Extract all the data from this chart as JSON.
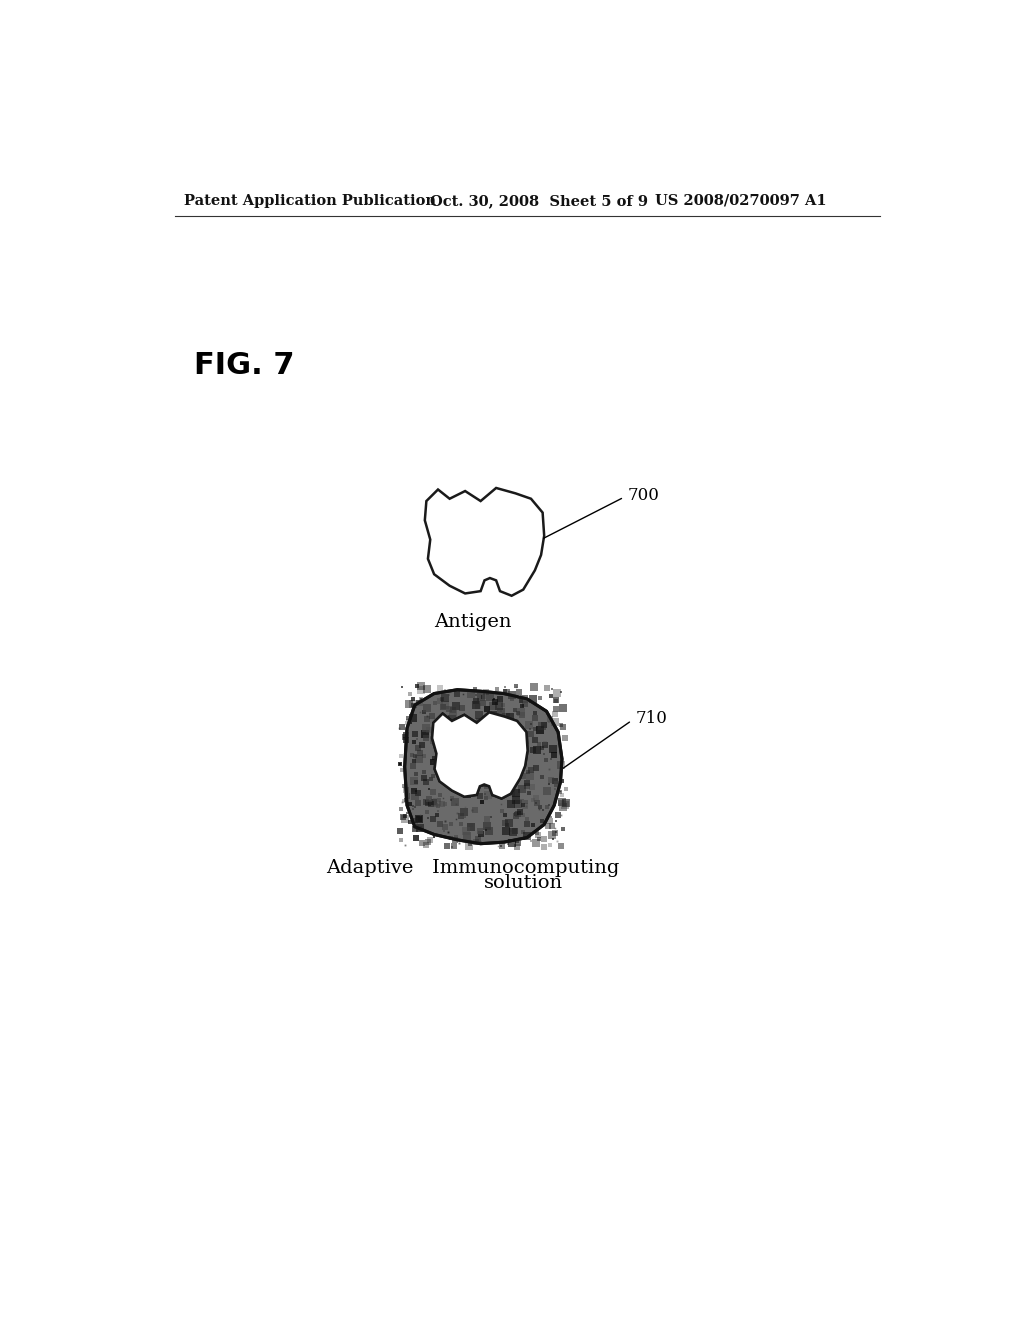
{
  "background_color": "#ffffff",
  "header_left": "Patent Application Publication",
  "header_center": "Oct. 30, 2008  Sheet 5 of 9",
  "header_right": "US 2008/0270097 A1",
  "fig_label": "FIG. 7",
  "antigen_label": "Antigen",
  "antigen_ref": "700",
  "antibody_label_line1": "Adaptive   Immunocomputing",
  "antibody_label_line2": "solution",
  "antibody_ref": "710",
  "header_fontsize": 10.5,
  "fig_label_fontsize": 22,
  "shape_label_fontsize": 14,
  "ref_fontsize": 12
}
